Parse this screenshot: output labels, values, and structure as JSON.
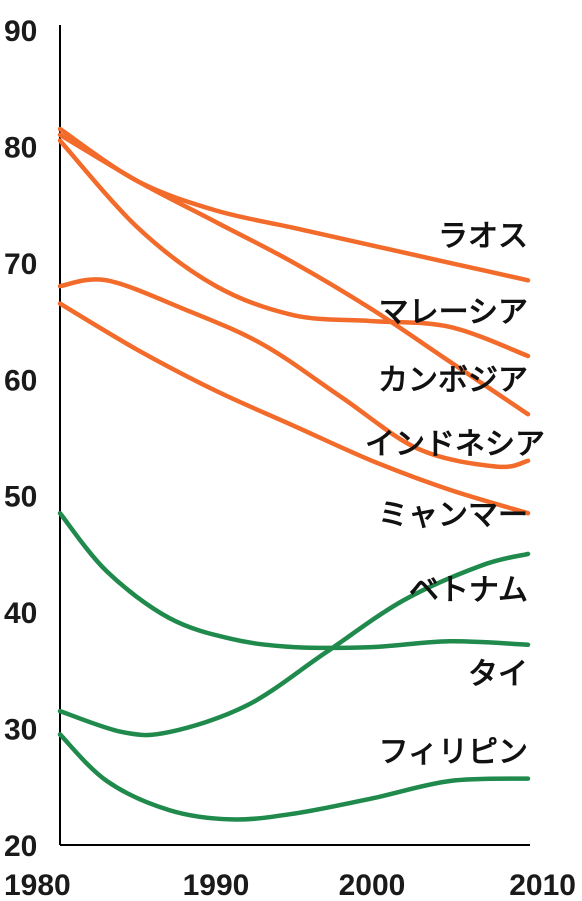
{
  "chart_data": {
    "type": "line",
    "title": "",
    "xlabel": "",
    "ylabel": "",
    "xlim": [
      1980,
      2010
    ],
    "ylim": [
      20,
      90
    ],
    "x_ticks": [
      "1980",
      "1990",
      "2000",
      "2010"
    ],
    "y_ticks": [
      "20",
      "30",
      "40",
      "50",
      "60",
      "70",
      "80",
      "90"
    ],
    "grid": false,
    "legend": "inline-right",
    "colors": {
      "orange": "#f26b2a",
      "green": "#1f8a4c"
    },
    "series": [
      {
        "name": "ラオス",
        "color": "orange",
        "x": [
          1980,
          1985,
          1990,
          1995,
          2000,
          2005,
          2010
        ],
        "y": [
          81.5,
          77.0,
          74.5,
          73.0,
          71.5,
          70.0,
          68.5
        ]
      },
      {
        "name": "マレーシア",
        "color": "orange",
        "x": [
          1980,
          1985,
          1990,
          1995,
          2000,
          2005,
          2010
        ],
        "y": [
          80.5,
          73.0,
          68.0,
          65.5,
          65.0,
          64.5,
          62.0
        ]
      },
      {
        "name": "カンボジア",
        "color": "orange",
        "x": [
          1980,
          1985,
          1990,
          1995,
          2000,
          2005,
          2010
        ],
        "y": [
          81.0,
          77.0,
          73.5,
          70.0,
          66.0,
          61.5,
          57.0
        ]
      },
      {
        "name": "インドネシア",
        "color": "orange",
        "x": [
          1980,
          1983,
          1988,
          1993,
          1998,
          2003,
          2008,
          2010
        ],
        "y": [
          68.0,
          68.5,
          66.0,
          63.0,
          58.5,
          54.0,
          52.5,
          53.0
        ]
      },
      {
        "name": "ミャンマー",
        "color": "orange",
        "x": [
          1980,
          1985,
          1990,
          1995,
          2000,
          2005,
          2010
        ],
        "y": [
          66.5,
          62.5,
          59.0,
          56.0,
          53.0,
          50.5,
          48.5
        ]
      },
      {
        "name": "ベトナム",
        "color": "green",
        "x": [
          1980,
          1984,
          1987,
          1992,
          1997,
          2002,
          2007,
          2010
        ],
        "y": [
          31.5,
          29.7,
          29.7,
          32.0,
          36.5,
          41.0,
          44.0,
          45.0
        ]
      },
      {
        "name": "タイ",
        "color": "green",
        "x": [
          1980,
          1983,
          1987,
          1991,
          1995,
          2000,
          2005,
          2010
        ],
        "y": [
          48.5,
          43.5,
          39.5,
          37.7,
          37.0,
          37.0,
          37.5,
          37.2
        ]
      },
      {
        "name": "フィリピン",
        "color": "green",
        "x": [
          1980,
          1983,
          1987,
          1991,
          1995,
          2000,
          2005,
          2010
        ],
        "y": [
          29.5,
          25.5,
          23.0,
          22.2,
          22.7,
          24.0,
          25.5,
          25.7
        ]
      }
    ],
    "labels": [
      {
        "series": "ラオス",
        "text": "ラオス"
      },
      {
        "series": "マレーシア",
        "text": "マレーシア"
      },
      {
        "series": "カンボジア",
        "text": "カンボジア"
      },
      {
        "series": "インドネシア",
        "text": "インドネシア"
      },
      {
        "series": "ミャンマー",
        "text": "ミャンマー"
      },
      {
        "series": "ベトナム",
        "text": "ベトナム"
      },
      {
        "series": "タイ",
        "text": "タイ"
      },
      {
        "series": "フィリピン",
        "text": "フィリピン"
      }
    ]
  }
}
